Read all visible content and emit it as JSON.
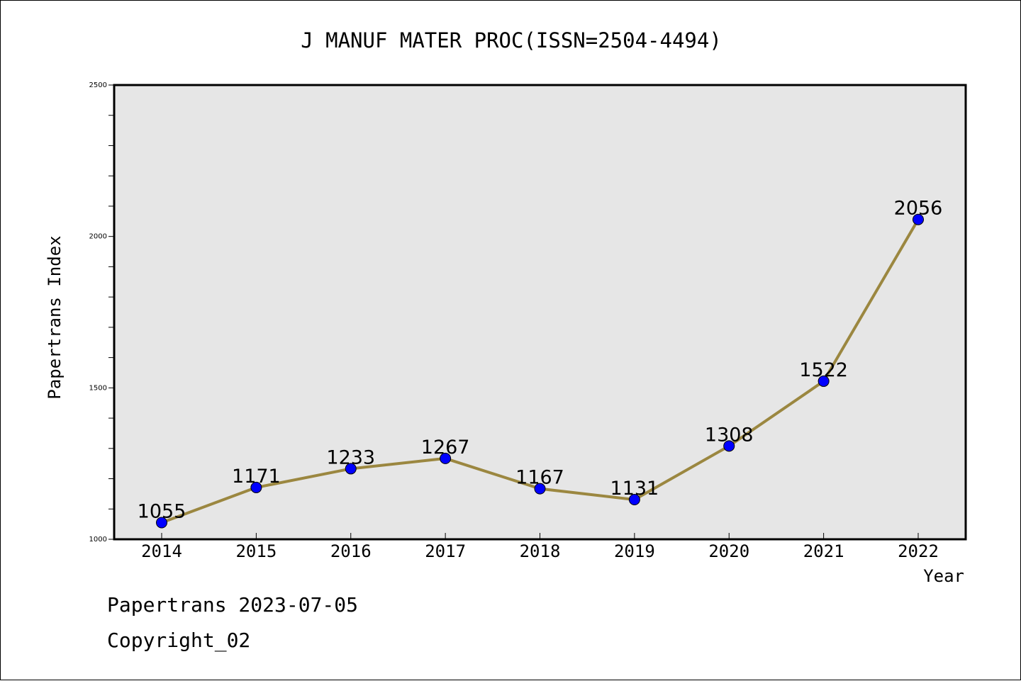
{
  "chart_data": {
    "type": "line",
    "title": "J MANUF MATER PROC(ISSN=2504-4494)",
    "xlabel": "Year",
    "ylabel": "Papertrans Index",
    "x": [
      "2014",
      "2015",
      "2016",
      "2017",
      "2018",
      "2019",
      "2020",
      "2021",
      "2022"
    ],
    "series": [
      {
        "values": [
          1055,
          1171,
          1233,
          1267,
          1167,
          1131,
          1308,
          1522,
          2056
        ]
      }
    ],
    "data_labels": [
      "1055",
      "1171",
      "1233",
      "1267",
      "1167",
      "1131",
      "1308",
      "1522",
      "2056"
    ],
    "ylim": [
      1000,
      2500
    ],
    "yticks": [
      "1000",
      "1500",
      "2000",
      "2500"
    ],
    "grid": false,
    "colors": {
      "line": "#9b8740",
      "marker": "#0000ff",
      "plot_background": "#e6e6e6"
    }
  },
  "footer": {
    "date_text": "Papertrans 2023-07-05",
    "copyright_text": "Copyright_02"
  }
}
